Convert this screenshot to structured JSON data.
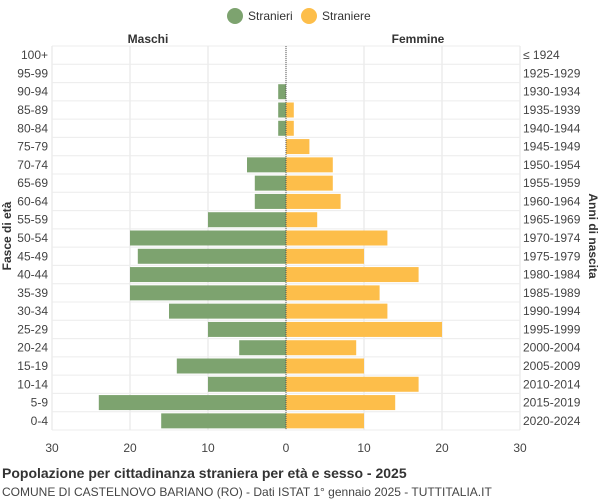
{
  "chart_data": {
    "type": "bar",
    "orientation": "horizontal-butterfly",
    "title": "Popolazione per cittadinanza straniera per età e sesso - 2025",
    "subtitle": "COMUNE DI CASTELNOVO BARIANO (RO) - Dati ISTAT 1° gennaio 2025 - TUTTITALIA.IT",
    "left_header": "Maschi",
    "right_header": "Femmine",
    "ylabel_left": "Fasce di età",
    "ylabel_right": "Anni di nascita",
    "xlim": [
      -30,
      30
    ],
    "x_ticks": [
      -30,
      -20,
      -10,
      0,
      10,
      20,
      30
    ],
    "x_tick_labels": [
      "30",
      "20",
      "10",
      "0",
      "10",
      "20",
      "30"
    ],
    "legend_position": "top-center",
    "grid": true,
    "age_groups": [
      "100+",
      "95-99",
      "90-94",
      "85-89",
      "80-84",
      "75-79",
      "70-74",
      "65-69",
      "60-64",
      "55-59",
      "50-54",
      "45-49",
      "40-44",
      "35-39",
      "30-34",
      "25-29",
      "20-24",
      "15-19",
      "10-14",
      "5-9",
      "0-4"
    ],
    "birth_years": [
      "≤ 1924",
      "1925-1929",
      "1930-1934",
      "1935-1939",
      "1940-1944",
      "1945-1949",
      "1950-1954",
      "1955-1959",
      "1960-1964",
      "1965-1969",
      "1970-1974",
      "1975-1979",
      "1980-1984",
      "1985-1989",
      "1990-1994",
      "1995-1999",
      "2000-2004",
      "2005-2009",
      "2010-2014",
      "2015-2019",
      "2020-2024"
    ],
    "series": [
      {
        "name": "Stranieri",
        "color": "#7da36f",
        "side": "left",
        "values": [
          0,
          0,
          1,
          1,
          1,
          0,
          5,
          4,
          4,
          10,
          20,
          19,
          20,
          20,
          15,
          10,
          6,
          14,
          10,
          24,
          16
        ]
      },
      {
        "name": "Straniere",
        "color": "#fdbe4a",
        "side": "right",
        "values": [
          0,
          0,
          0,
          1,
          1,
          3,
          6,
          6,
          7,
          4,
          13,
          10,
          17,
          12,
          13,
          20,
          9,
          10,
          17,
          14,
          10
        ]
      }
    ]
  }
}
